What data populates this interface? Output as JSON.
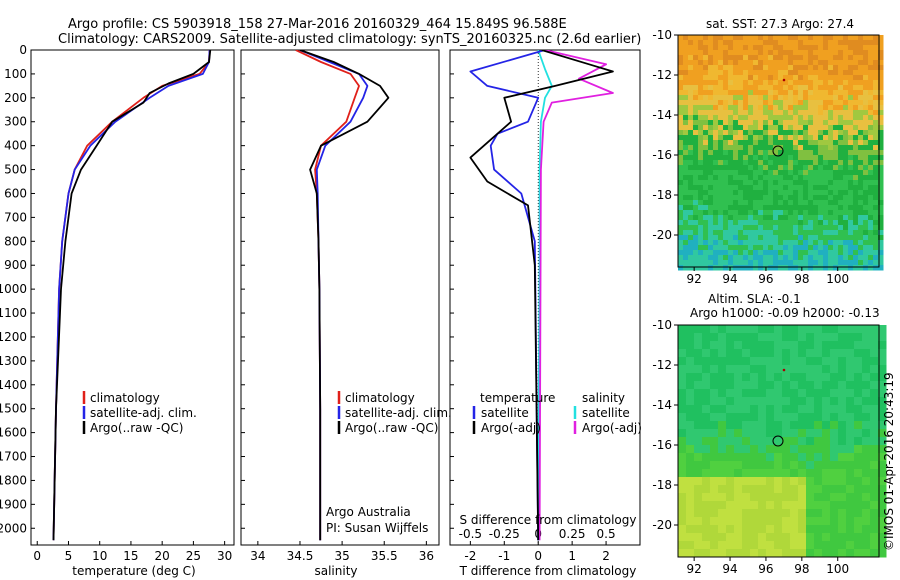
{
  "header": {
    "line1": "Argo profile: CS 5903918_158 27-Mar-2016 20160329_464 15.849S 96.588E",
    "line2": "Climatology: CARS2009. Satellite-adjusted climatology: synTS_20160325.nc (2.6d earlier)"
  },
  "colors": {
    "climatology": "#e0201a",
    "satellite": "#2424e6",
    "argo": "#000000",
    "sal_satellite": "#22e0e0",
    "sal_argo": "#e020e0"
  },
  "depth_ticks": [
    "0",
    "100",
    "200",
    "300",
    "400",
    "500",
    "600",
    "700",
    "800",
    "900",
    "1000",
    "1100",
    "1200",
    "1300",
    "1400",
    "1500",
    "1600",
    "1700",
    "1800",
    "1900",
    "2000"
  ],
  "panels": {
    "temperature": {
      "xlabel": "temperature (deg C)",
      "xticks": [
        "0",
        "5",
        "10",
        "15",
        "20",
        "25",
        "30"
      ],
      "legend": [
        "climatology",
        "satellite-adj. clim.",
        "Argo(..raw -QC)"
      ]
    },
    "salinity": {
      "xlabel": "salinity",
      "xticks": [
        "34",
        "34.5",
        "35",
        "35.5",
        "36"
      ],
      "legend": [
        "climatology",
        "satellite-adj. clim.",
        "Argo(..raw -QC)"
      ],
      "note1": "Argo Australia",
      "note2": "PI: Susan Wijffels"
    },
    "difference": {
      "xlabel": "T difference from climatology",
      "top_label": "S difference from climatology",
      "t_ticks": [
        "-2",
        "-1",
        "0",
        "1",
        "2"
      ],
      "s_ticks": [
        "-0.5",
        "-0.25",
        "0",
        "0.25",
        "0.5"
      ],
      "legend_t_title": "temperature",
      "legend_s_title": "salinity",
      "legend_t": [
        "satellite",
        "Argo(-adj)"
      ],
      "legend_s": [
        "satellite",
        "Argo(-adj)"
      ]
    }
  },
  "maps": {
    "sst": {
      "title": "sat. SST: 27.3 Argo: 27.4"
    },
    "sla": {
      "title1": "Altim. SLA: -0.1",
      "title2": "Argo h1000: -0.09 h2000: -0.13"
    },
    "lat_ticks": [
      "-10",
      "-12",
      "-14",
      "-16",
      "-18",
      "-20"
    ],
    "lon_ticks": [
      "92",
      "94",
      "96",
      "98",
      "100"
    ]
  },
  "credit": "©IMOS 01-Apr-2016 20:43:19",
  "chart_data": [
    {
      "type": "line",
      "title": "",
      "xlabel": "temperature (deg C)",
      "ylabel": "",
      "xlim": [
        -1,
        31.5
      ],
      "ylim": [
        2070,
        0
      ],
      "series": [
        {
          "name": "climatology",
          "x": [
            27.6,
            27.5,
            26,
            20,
            17,
            12,
            8,
            6,
            5,
            4,
            3.5,
            3,
            2.6
          ],
          "y": [
            0,
            50,
            100,
            150,
            200,
            300,
            400,
            500,
            600,
            800,
            1000,
            1500,
            2050
          ]
        },
        {
          "name": "satellite-adj. clim.",
          "x": [
            27.6,
            27.5,
            26.5,
            21,
            18,
            12.5,
            8.5,
            6,
            5,
            4,
            3.5,
            3,
            2.6
          ],
          "y": [
            0,
            50,
            100,
            150,
            200,
            300,
            400,
            500,
            600,
            800,
            1000,
            1500,
            2050
          ]
        },
        {
          "name": "Argo(..raw -QC)",
          "x": [
            27.7,
            27.5,
            25,
            21,
            18,
            17,
            12,
            9.5,
            7,
            5.5,
            4.5,
            3.8,
            3,
            2.6
          ],
          "y": [
            0,
            50,
            100,
            140,
            180,
            220,
            300,
            400,
            500,
            600,
            800,
            1000,
            1500,
            2050
          ]
        }
      ]
    },
    {
      "type": "line",
      "title": "",
      "xlabel": "salinity",
      "ylabel": "",
      "xlim": [
        33.8,
        36.15
      ],
      "ylim": [
        2070,
        0
      ],
      "series": [
        {
          "name": "climatology",
          "x": [
            34.45,
            34.75,
            35.1,
            35.2,
            35.15,
            35.05,
            34.75,
            34.68,
            34.7,
            34.72,
            34.73,
            34.74,
            34.74
          ],
          "y": [
            0,
            50,
            100,
            150,
            200,
            300,
            400,
            500,
            600,
            800,
            1000,
            1500,
            2050
          ]
        },
        {
          "name": "satellite-adj. clim.",
          "x": [
            34.5,
            34.85,
            35.2,
            35.3,
            35.25,
            35.1,
            34.8,
            34.7,
            34.71,
            34.72,
            34.73,
            34.74,
            34.74
          ],
          "y": [
            0,
            50,
            100,
            150,
            200,
            300,
            400,
            500,
            600,
            800,
            1000,
            1500,
            2050
          ]
        },
        {
          "name": "Argo(..raw -QC)",
          "x": [
            34.5,
            34.9,
            35.2,
            35.45,
            35.55,
            35.3,
            34.75,
            34.62,
            34.7,
            34.72,
            34.73,
            34.74,
            34.74
          ],
          "y": [
            0,
            50,
            100,
            150,
            200,
            300,
            400,
            500,
            600,
            800,
            1000,
            1500,
            2050
          ]
        }
      ]
    },
    {
      "type": "line",
      "title": "",
      "xlabel": "T difference from climatology",
      "ylabel": "",
      "xlim": [
        -2.6,
        3.0
      ],
      "ylim": [
        2070,
        0
      ],
      "series": [
        {
          "name": "satellite",
          "x": [
            0.2,
            -2.0,
            -1.5,
            0,
            -0.3,
            -1.2,
            -1.4,
            -1.3,
            -0.5,
            -0.1,
            0
          ],
          "y": [
            0,
            90,
            150,
            200,
            300,
            350,
            400,
            500,
            600,
            800,
            2050
          ]
        },
        {
          "name": "Argo(-adj)",
          "x": [
            0.1,
            1.5,
            2.2,
            0.5,
            -1.0,
            -0.8,
            -2.0,
            -1.5,
            -0.3,
            -0.1,
            0
          ],
          "y": [
            0,
            60,
            90,
            150,
            200,
            300,
            450,
            550,
            650,
            900,
            2050
          ]
        }
      ]
    },
    {
      "type": "line",
      "title": "",
      "xlabel": "S difference from climatology",
      "ylabel": "",
      "xlim": [
        -0.65,
        0.75
      ],
      "ylim": [
        2070,
        0
      ],
      "series": [
        {
          "name": "satellite",
          "x": [
            0,
            0.05,
            0.1,
            0.05,
            0.02,
            0.01,
            0.01,
            0.0
          ],
          "y": [
            0,
            80,
            150,
            200,
            300,
            500,
            800,
            2050
          ]
        },
        {
          "name": "Argo(-adj)",
          "x": [
            0.05,
            0.5,
            0.3,
            0.55,
            0.1,
            0.04,
            0.02,
            0.01
          ],
          "y": [
            0,
            60,
            120,
            180,
            220,
            300,
            500,
            2050
          ]
        }
      ]
    }
  ]
}
